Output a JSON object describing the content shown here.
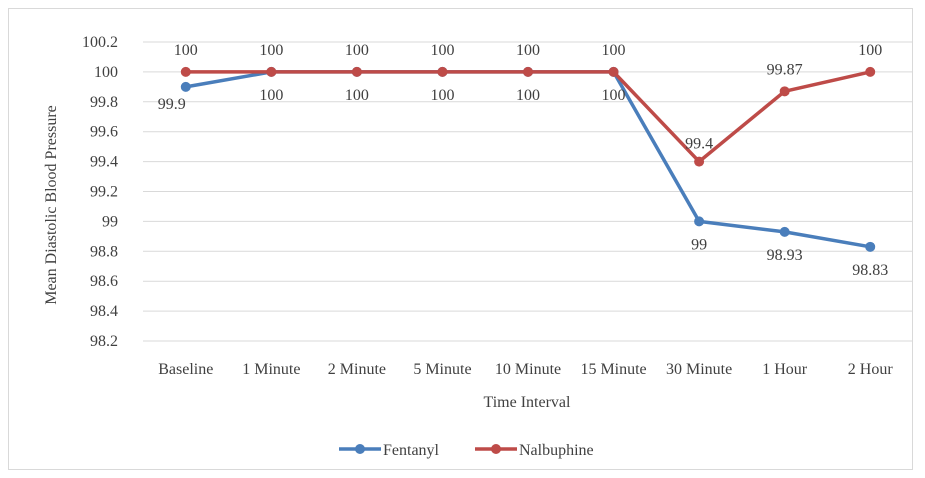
{
  "chart_data": {
    "type": "line",
    "title": "",
    "xlabel": "Time Interval",
    "ylabel": "Mean Diastolic Blood Pressure",
    "categories": [
      "Baseline",
      "1 Minute",
      "2 Minute",
      "5 Minute",
      "10 Minute",
      "15 Minute",
      "30 Minute",
      "1 Hour",
      "2 Hour"
    ],
    "ylim": [
      98.2,
      100.2
    ],
    "yticks": [
      "100.2",
      "100",
      "99.8",
      "99.6",
      "99.4",
      "99.2",
      "99",
      "98.8",
      "98.6",
      "98.4",
      "98.2"
    ],
    "grid": true,
    "legend_position": "bottom",
    "series": [
      {
        "name": "Fentanyl",
        "color": "#4a7ebb",
        "values": [
          99.9,
          100,
          100,
          100,
          100,
          100,
          99,
          98.93,
          98.83
        ],
        "labels": [
          "99.9",
          "100",
          "100",
          "100",
          "100",
          "100",
          "99",
          "98.93",
          "98.83"
        ]
      },
      {
        "name": "Nalbuphine",
        "color": "#be4b48",
        "values": [
          100,
          100,
          100,
          100,
          100,
          100,
          99.4,
          99.87,
          100
        ],
        "labels": [
          "100",
          "100",
          "100",
          "100",
          "100",
          "100",
          "99.4",
          "99.87",
          "100"
        ]
      }
    ]
  }
}
